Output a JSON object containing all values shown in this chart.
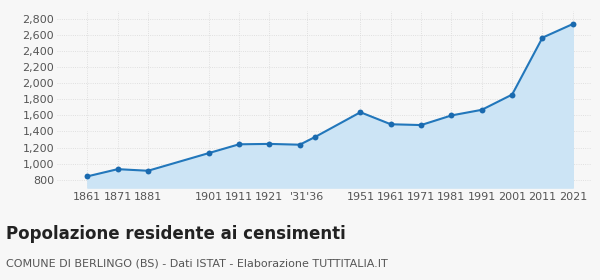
{
  "years": [
    1861,
    1871,
    1881,
    1901,
    1911,
    1921,
    1931,
    1936,
    1951,
    1961,
    1971,
    1981,
    1991,
    2001,
    2011,
    2021
  ],
  "population": [
    840,
    930,
    910,
    1130,
    1240,
    1245,
    1235,
    1330,
    1640,
    1490,
    1480,
    1600,
    1670,
    1860,
    2570,
    2740
  ],
  "ylim": [
    700,
    2900
  ],
  "yticks": [
    800,
    1000,
    1200,
    1400,
    1600,
    1800,
    2000,
    2200,
    2400,
    2600,
    2800
  ],
  "xlim_left": 1851,
  "xlim_right": 2027,
  "x_tick_positions": [
    1861,
    1871,
    1881,
    1901,
    1911,
    1921,
    1933.5,
    1951,
    1961,
    1971,
    1981,
    1991,
    2001,
    2011,
    2021
  ],
  "x_tick_labels": [
    "1861",
    "1871",
    "1881",
    "1901",
    "1911",
    "1921",
    "'31'36",
    "1951",
    "1961",
    "1971",
    "1981",
    "1991",
    "2001",
    "2011",
    "2021"
  ],
  "line_color": "#2277bb",
  "fill_color": "#cce4f5",
  "marker_color": "#1a6aaf",
  "bg_color": "#f7f7f7",
  "grid_color": "#d8d8d8",
  "title": "Popolazione residente ai censimenti",
  "subtitle": "COMUNE DI BERLINGO (BS) - Dati ISTAT - Elaborazione TUTTITALIA.IT",
  "title_fontsize": 12,
  "subtitle_fontsize": 8,
  "tick_fontsize": 8,
  "fill_baseline": 700
}
